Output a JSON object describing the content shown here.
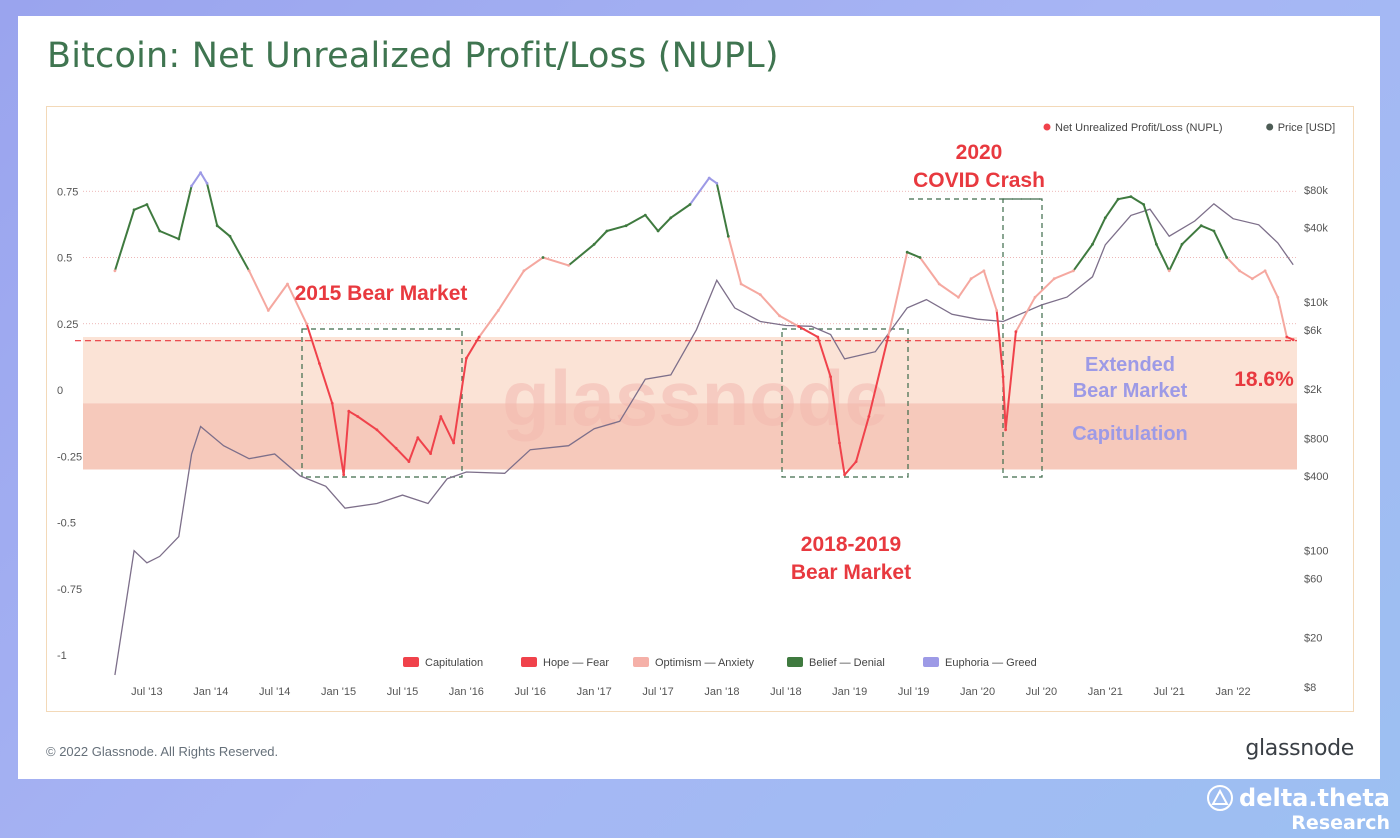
{
  "title": "Bitcoin: Net Unrealized Profit/Loss (NUPL)",
  "copyright": "© 2022 Glassnode. All Rights Reserved.",
  "brand": "glassnode",
  "watermark": "glassnode",
  "partner": {
    "name": "delta.theta",
    "sub": "Research"
  },
  "legend_top": [
    {
      "label": "Net Unrealized Profit/Loss (NUPL)",
      "color": "#f0424b"
    },
    {
      "label": "Price [USD]",
      "color": "#4d5c55"
    }
  ],
  "legend_bottom": [
    {
      "label": "Capitulation",
      "color": "#f0424b"
    },
    {
      "label": "Hope — Fear",
      "color": "#f0424b"
    },
    {
      "label": "Optimism — Anxiety",
      "color": "#f5b0a8"
    },
    {
      "label": "Belief — Denial",
      "color": "#3f7a3f"
    },
    {
      "label": "Euphoria — Greed",
      "color": "#9d9ae6"
    }
  ],
  "annotations": {
    "bear2015": "2015 Bear Market",
    "covid_1": "2020",
    "covid_2": "COVID Crash",
    "bear2018_1": "2018-2019",
    "bear2018_2": "Bear Market",
    "extended_1": "Extended",
    "extended_2": "Bear Market",
    "capitulation": "Capitulation",
    "current": "18.6%"
  },
  "colors": {
    "title": "#3f7550",
    "annotation_red": "#e8393f",
    "annotation_purple": "#9d9ae6",
    "band_extended": "#fbe3d6",
    "band_capitulation": "#f6c9bb"
  },
  "chart_data": {
    "type": "line",
    "title": "Bitcoin: Net Unrealized Profit/Loss (NUPL)",
    "x_ticks": [
      "Jul '13",
      "Jan '14",
      "Jul '14",
      "Jan '15",
      "Jul '15",
      "Jan '16",
      "Jul '16",
      "Jan '17",
      "Jul '17",
      "Jan '18",
      "Jul '18",
      "Jan '19",
      "Jul '19",
      "Jan '20",
      "Jul '20",
      "Jan '21",
      "Jul '21",
      "Jan '22"
    ],
    "y_left_ticks": [
      "0.75",
      "0.5",
      "0.25",
      "0",
      "-0.25",
      "-0.5",
      "-0.75",
      "-1"
    ],
    "y_left_range": [
      -1,
      0.85
    ],
    "y_right_ticks": [
      "$80k",
      "$40k",
      "$10k",
      "$6k",
      "$2k",
      "$800",
      "$400",
      "$100",
      "$60",
      "$20",
      "$8"
    ],
    "y_right_scale": "log",
    "reference_line_nupl": 0.186,
    "series": [
      {
        "name": "Net Unrealized Profit/Loss (NUPL)",
        "x": [
          2013.25,
          2013.4,
          2013.5,
          2013.6,
          2013.75,
          2013.85,
          2013.92,
          2013.97,
          2014.05,
          2014.15,
          2014.3,
          2014.45,
          2014.6,
          2014.75,
          2014.85,
          2014.95,
          2015.04,
          2015.08,
          2015.15,
          2015.3,
          2015.45,
          2015.55,
          2015.62,
          2015.72,
          2015.8,
          2015.9,
          2016.0,
          2016.1,
          2016.25,
          2016.45,
          2016.6,
          2016.8,
          2017.0,
          2017.1,
          2017.25,
          2017.4,
          2017.5,
          2017.6,
          2017.75,
          2017.9,
          2017.96,
          2018.05,
          2018.15,
          2018.3,
          2018.45,
          2018.6,
          2018.75,
          2018.85,
          2018.92,
          2018.96,
          2019.05,
          2019.15,
          2019.3,
          2019.45,
          2019.55,
          2019.7,
          2019.85,
          2019.95,
          2020.05,
          2020.15,
          2020.2,
          2020.22,
          2020.3,
          2020.45,
          2020.6,
          2020.75,
          2020.9,
          2021.0,
          2021.1,
          2021.2,
          2021.3,
          2021.4,
          2021.5,
          2021.6,
          2021.75,
          2021.85,
          2021.95,
          2022.05,
          2022.15,
          2022.25,
          2022.35,
          2022.42,
          2022.47
        ],
        "y": [
          0.45,
          0.68,
          0.7,
          0.6,
          0.57,
          0.77,
          0.82,
          0.78,
          0.62,
          0.58,
          0.45,
          0.3,
          0.4,
          0.25,
          0.1,
          -0.05,
          -0.32,
          -0.08,
          -0.1,
          -0.15,
          -0.22,
          -0.27,
          -0.18,
          -0.24,
          -0.1,
          -0.2,
          0.12,
          0.2,
          0.3,
          0.45,
          0.5,
          0.47,
          0.55,
          0.6,
          0.62,
          0.66,
          0.6,
          0.65,
          0.7,
          0.8,
          0.78,
          0.58,
          0.4,
          0.36,
          0.28,
          0.24,
          0.2,
          0.05,
          -0.2,
          -0.32,
          -0.27,
          -0.1,
          0.2,
          0.52,
          0.5,
          0.4,
          0.35,
          0.42,
          0.45,
          0.3,
          0.05,
          -0.15,
          0.22,
          0.35,
          0.42,
          0.45,
          0.55,
          0.65,
          0.72,
          0.73,
          0.7,
          0.55,
          0.45,
          0.55,
          0.62,
          0.6,
          0.5,
          0.45,
          0.42,
          0.45,
          0.35,
          0.2,
          0.19
        ]
      },
      {
        "name": "Price [USD]",
        "x": [
          2013.25,
          2013.4,
          2013.5,
          2013.6,
          2013.75,
          2013.85,
          2013.92,
          2014.1,
          2014.3,
          2014.5,
          2014.7,
          2014.9,
          2015.05,
          2015.3,
          2015.5,
          2015.7,
          2015.85,
          2016.0,
          2016.3,
          2016.5,
          2016.8,
          2017.0,
          2017.2,
          2017.4,
          2017.6,
          2017.8,
          2017.96,
          2018.1,
          2018.3,
          2018.5,
          2018.7,
          2018.85,
          2018.96,
          2019.2,
          2019.45,
          2019.6,
          2019.8,
          2020.0,
          2020.2,
          2020.5,
          2020.7,
          2020.9,
          2021.0,
          2021.2,
          2021.35,
          2021.5,
          2021.7,
          2021.85,
          2022.0,
          2022.2,
          2022.35,
          2022.47
        ],
        "y": [
          10,
          100,
          80,
          90,
          130,
          600,
          1000,
          700,
          550,
          600,
          400,
          330,
          220,
          240,
          280,
          240,
          380,
          430,
          420,
          650,
          700,
          960,
          1100,
          2400,
          2600,
          6000,
          15000,
          9000,
          7000,
          6500,
          6400,
          5500,
          3500,
          4000,
          9000,
          10500,
          8000,
          7300,
          7000,
          9500,
          11000,
          16000,
          29000,
          50000,
          56000,
          34000,
          45000,
          62000,
          47000,
          42000,
          30000,
          20000
        ]
      }
    ]
  }
}
